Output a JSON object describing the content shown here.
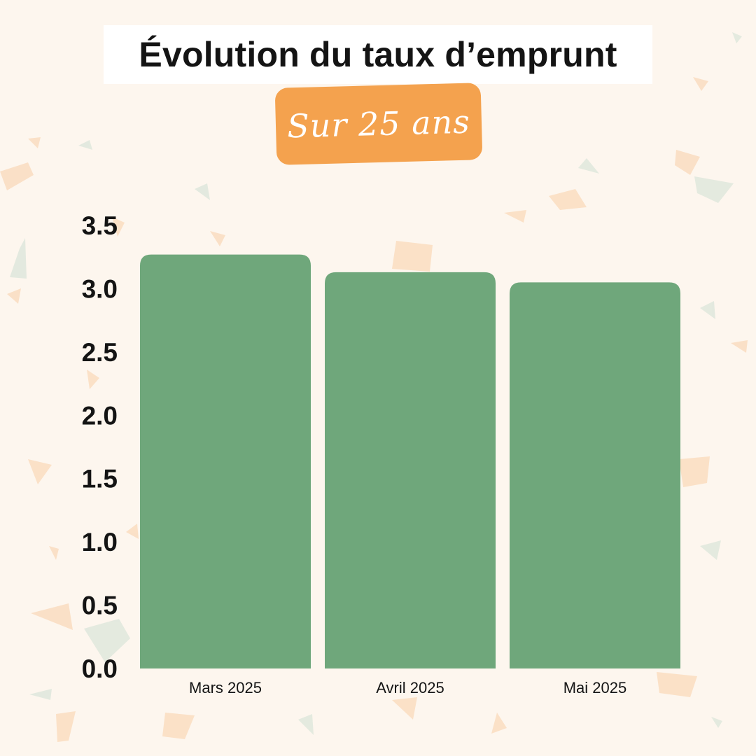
{
  "chart_data": {
    "type": "bar",
    "title": "Évolution du taux d’emprunt",
    "subtitle": "Sur 25 ans",
    "categories": [
      "Mars 2025",
      "Avril 2025",
      "Mai 2025"
    ],
    "values": [
      3.27,
      3.13,
      3.05
    ],
    "xlabel": "",
    "ylabel": "",
    "ylim": [
      0,
      3.5
    ],
    "yticks": [
      "0.0",
      "0.5",
      "1.0",
      "1.5",
      "2.0",
      "2.5",
      "3.0",
      "3.5"
    ],
    "grid": false,
    "legend": "none",
    "bar_color": "#6fa77b",
    "accent_color": "#f4a24e",
    "background_color": "#fdf6ee"
  }
}
